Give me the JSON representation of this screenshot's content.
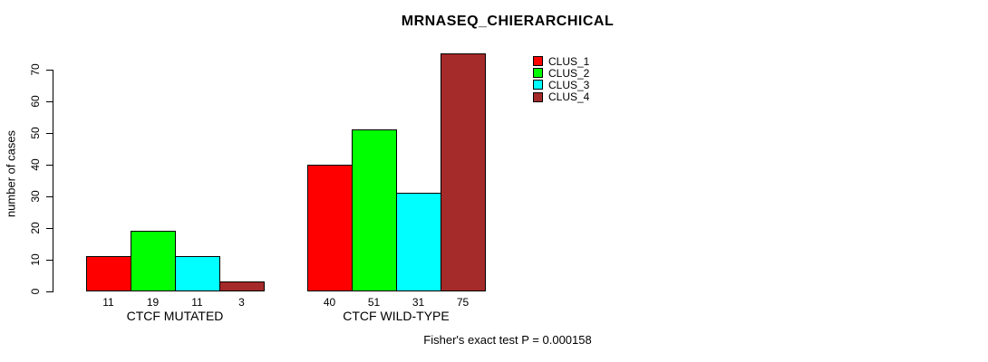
{
  "title": "MRNASEQ_CHIERARCHICAL",
  "footer": "Fisher's exact test P = 0.000158",
  "chart_data": {
    "type": "bar",
    "title": "MRNASEQ_CHIERARCHICAL",
    "xlabel": "",
    "ylabel": "number of cases",
    "categories": [
      "CTCF MUTATED",
      "CTCF WILD-TYPE"
    ],
    "series": [
      {
        "name": "CLUS_1",
        "color": "#FF0000",
        "values": [
          11,
          40
        ]
      },
      {
        "name": "CLUS_2",
        "color": "#00FF00",
        "values": [
          19,
          51
        ]
      },
      {
        "name": "CLUS_3",
        "color": "#00FFFF",
        "values": [
          11,
          31
        ]
      },
      {
        "name": "CLUS_4",
        "color": "#A52A2A",
        "values": [
          3,
          75
        ]
      }
    ],
    "bar_value_labels": [
      [
        11,
        19,
        11,
        3
      ],
      [
        40,
        51,
        31,
        75
      ]
    ],
    "yticks": [
      0,
      10,
      20,
      30,
      40,
      50,
      60,
      70
    ],
    "ylim": [
      0,
      75
    ],
    "grid": false,
    "legend_position": "top-right",
    "legend_entries": [
      "CLUS_1",
      "CLUS_2",
      "CLUS_3",
      "CLUS_4"
    ],
    "annotation": "Fisher's exact test P = 0.000158"
  }
}
